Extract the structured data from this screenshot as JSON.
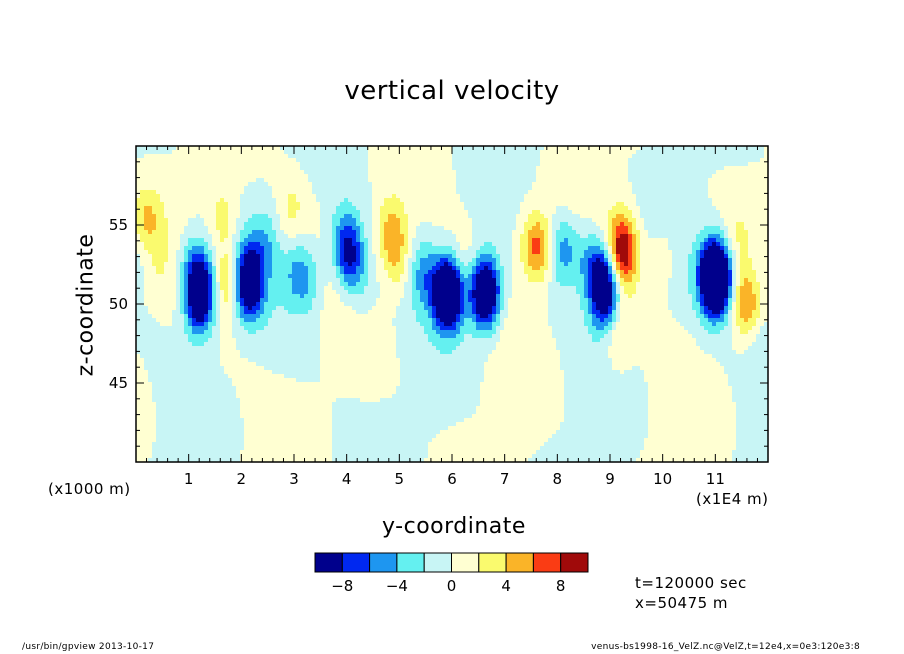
{
  "chart_data": {
    "type": "heatmap",
    "title": "vertical velocity",
    "xlabel": "y-coordinate",
    "ylabel": "z-coordinate",
    "x_unit_left": "(x1000 m)",
    "x_unit_right": "(x1E4 m)",
    "xlim": [
      0,
      12
    ],
    "ylim": [
      40,
      60
    ],
    "x_ticks": [
      "1",
      "2",
      "3",
      "4",
      "5",
      "6",
      "7",
      "8",
      "9",
      "10",
      "11"
    ],
    "y_ticks": [
      "45",
      "50",
      "55"
    ],
    "colorbar": {
      "levels": [
        -10,
        -8,
        -6,
        -4,
        -2,
        0,
        2,
        4,
        6,
        8,
        10
      ],
      "labels": [
        "-8",
        "-4",
        "0",
        "4",
        "8"
      ],
      "colors": [
        "#00008c",
        "#0028f0",
        "#1e96f0",
        "#64f0f0",
        "#c8f5f5",
        "#ffffd2",
        "#fafa6e",
        "#fab428",
        "#fa3c14",
        "#a00a0a"
      ]
    },
    "features": [
      {
        "y": 0.15,
        "z": 53.5,
        "value": -2.5
      },
      {
        "y": 0.2,
        "z": 55,
        "value": 5
      },
      {
        "y": 0.35,
        "z": 52,
        "value": 1.5
      },
      {
        "y": 1.05,
        "z": 52.5,
        "value": -3.5
      },
      {
        "y": 1.25,
        "z": 51.5,
        "value": -6.5
      },
      {
        "y": 1.2,
        "z": 50,
        "value": -9
      },
      {
        "y": 1.65,
        "z": 55.5,
        "value": 3
      },
      {
        "y": 1.75,
        "z": 51.5,
        "value": 5
      },
      {
        "y": 2.1,
        "z": 52,
        "value": -5
      },
      {
        "y": 2.15,
        "z": 51,
        "value": -8
      },
      {
        "y": 2.45,
        "z": 54,
        "value": -3
      },
      {
        "y": 2.95,
        "z": 56,
        "value": 2.5
      },
      {
        "y": 3.05,
        "z": 52,
        "value": -3.5
      },
      {
        "y": 3.3,
        "z": 51.5,
        "value": -3
      },
      {
        "y": 3.95,
        "z": 54.5,
        "value": -3
      },
      {
        "y": 4.05,
        "z": 53,
        "value": -8
      },
      {
        "y": 4.3,
        "z": 51,
        "value": -2
      },
      {
        "y": 4.85,
        "z": 54.5,
        "value": 5
      },
      {
        "y": 5.0,
        "z": 52.5,
        "value": 3
      },
      {
        "y": 5.45,
        "z": 52,
        "value": -4
      },
      {
        "y": 5.9,
        "z": 51,
        "value": -7
      },
      {
        "y": 5.95,
        "z": 50.5,
        "value": -9.5
      },
      {
        "y": 6.2,
        "z": 52.5,
        "value": 1.5
      },
      {
        "y": 6.6,
        "z": 51,
        "value": -6
      },
      {
        "y": 6.65,
        "z": 50.5,
        "value": -9
      },
      {
        "y": 7.45,
        "z": 54,
        "value": 2
      },
      {
        "y": 7.65,
        "z": 53.5,
        "value": 6
      },
      {
        "y": 8.1,
        "z": 53.5,
        "value": -5
      },
      {
        "y": 8.55,
        "z": 53,
        "value": -3
      },
      {
        "y": 8.85,
        "z": 52,
        "value": -7
      },
      {
        "y": 8.9,
        "z": 50.5,
        "value": -9
      },
      {
        "y": 9.2,
        "z": 54,
        "value": 4
      },
      {
        "y": 9.25,
        "z": 53,
        "value": 7
      },
      {
        "y": 9.15,
        "z": 48,
        "value": 3
      },
      {
        "y": 10.0,
        "z": 53,
        "value": 2
      },
      {
        "y": 11.0,
        "z": 52.5,
        "value": -4
      },
      {
        "y": 10.95,
        "z": 51.5,
        "value": -8
      },
      {
        "y": 11.05,
        "z": 51.5,
        "value": -9.5
      },
      {
        "y": 11.4,
        "z": 54,
        "value": 1.5
      },
      {
        "y": 11.6,
        "z": 50,
        "value": 6
      },
      {
        "y": 11.85,
        "z": 52,
        "value": -2
      },
      {
        "y": 11.85,
        "z": 48,
        "value": -2
      }
    ]
  },
  "time_label": "t=120000 sec",
  "x_label": "x=50475 m",
  "footer_left": "/usr/bin/gpview  2013-10-17",
  "footer_right": "venus-bs1998-16_VelZ.nc@VelZ,t=12e4,x=0e3:120e3:8"
}
